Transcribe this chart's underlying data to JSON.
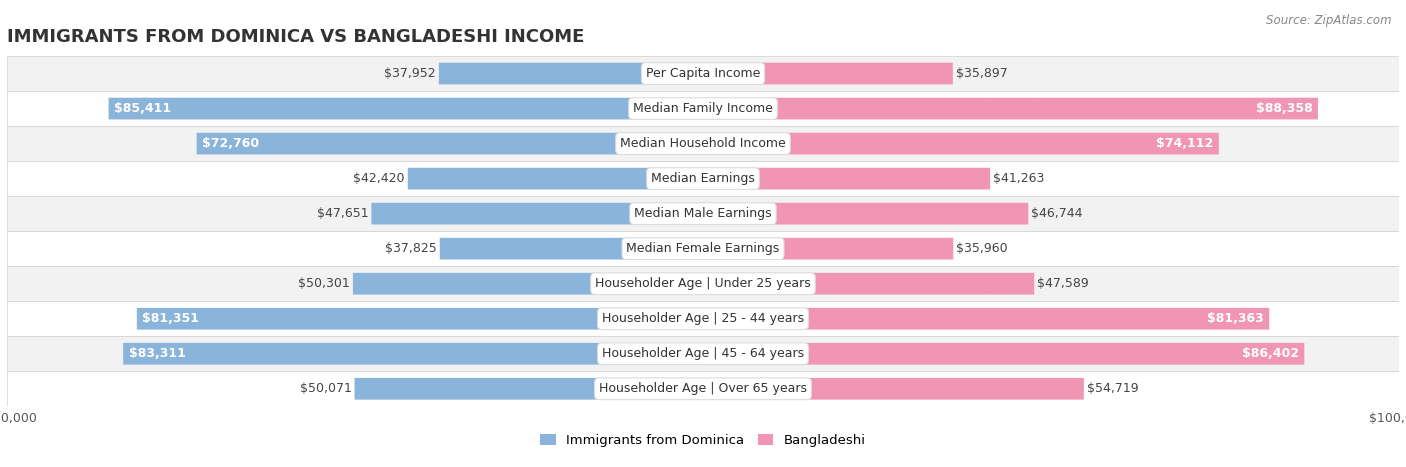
{
  "title": "IMMIGRANTS FROM DOMINICA VS BANGLADESHI INCOME",
  "source": "Source: ZipAtlas.com",
  "categories": [
    "Per Capita Income",
    "Median Family Income",
    "Median Household Income",
    "Median Earnings",
    "Median Male Earnings",
    "Median Female Earnings",
    "Householder Age | Under 25 years",
    "Householder Age | 25 - 44 years",
    "Householder Age | 45 - 64 years",
    "Householder Age | Over 65 years"
  ],
  "dominica_values": [
    37952,
    85411,
    72760,
    42420,
    47651,
    37825,
    50301,
    81351,
    83311,
    50071
  ],
  "bangladeshi_values": [
    35897,
    88358,
    74112,
    41263,
    46744,
    35960,
    47589,
    81363,
    86402,
    54719
  ],
  "dominica_labels": [
    "$37,952",
    "$85,411",
    "$72,760",
    "$42,420",
    "$47,651",
    "$37,825",
    "$50,301",
    "$81,351",
    "$83,311",
    "$50,071"
  ],
  "bangladeshi_labels": [
    "$35,897",
    "$88,358",
    "$74,112",
    "$41,263",
    "$46,744",
    "$35,960",
    "$47,589",
    "$81,363",
    "$86,402",
    "$54,719"
  ],
  "dominica_color": "#8ab4d9",
  "bangladeshi_color": "#f096b4",
  "max_value": 100000,
  "row_colors": [
    "#f2f2f2",
    "#ffffff"
  ],
  "background_color": "#ffffff",
  "legend_dominica": "Immigrants from Dominica",
  "legend_bangladeshi": "Bangladeshi",
  "title_fontsize": 13,
  "label_fontsize": 9,
  "axis_label_fontsize": 9,
  "bar_height": 0.62,
  "inside_label_threshold": 58000
}
